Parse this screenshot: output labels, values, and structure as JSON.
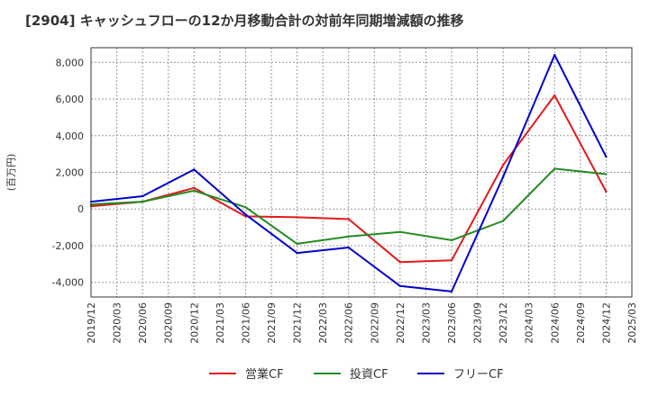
{
  "chart_data": {
    "type": "line",
    "title": "[2904]  キャッシュフローの12か月移動合計の対前年同期増減額の推移",
    "xlabel": "",
    "ylabel": "(百万円)",
    "ylim": [
      -4800,
      8800
    ],
    "yticks": [
      -4000,
      -2000,
      0,
      2000,
      4000,
      6000,
      8000
    ],
    "ytick_labels": [
      "-4,000",
      "-2,000",
      "0",
      "2,000",
      "4,000",
      "6,000",
      "8,000"
    ],
    "grid": true,
    "legend_position": "bottom",
    "categories": [
      "2019/12",
      "2020/03",
      "2020/06",
      "2020/09",
      "2020/12",
      "2021/03",
      "2021/06",
      "2021/09",
      "2021/12",
      "2022/03",
      "2022/06",
      "2022/09",
      "2022/12",
      "2023/03",
      "2023/06",
      "2023/09",
      "2023/12",
      "2024/03",
      "2024/06",
      "2024/09",
      "2024/12",
      "2025/03"
    ],
    "series": [
      {
        "name": "営業CF",
        "color": "#e31a1c",
        "points": [
          [
            "2019/12",
            150
          ],
          [
            "2020/06",
            400
          ],
          [
            "2020/12",
            1150
          ],
          [
            "2021/06",
            -400
          ],
          [
            "2021/12",
            -450
          ],
          [
            "2022/06",
            -550
          ],
          [
            "2022/12",
            -2900
          ],
          [
            "2023/06",
            -2800
          ],
          [
            "2023/12",
            2400
          ],
          [
            "2024/06",
            6200
          ],
          [
            "2024/12",
            950
          ]
        ]
      },
      {
        "name": "投資CF",
        "color": "#228b22",
        "points": [
          [
            "2019/12",
            250
          ],
          [
            "2020/06",
            400
          ],
          [
            "2020/12",
            1000
          ],
          [
            "2021/06",
            100
          ],
          [
            "2021/12",
            -1900
          ],
          [
            "2022/06",
            -1500
          ],
          [
            "2022/12",
            -1250
          ],
          [
            "2023/06",
            -1700
          ],
          [
            "2023/12",
            -650
          ],
          [
            "2024/06",
            2200
          ],
          [
            "2024/12",
            1900
          ]
        ]
      },
      {
        "name": "フリーCF",
        "color": "#0000cd",
        "points": [
          [
            "2019/12",
            400
          ],
          [
            "2020/06",
            700
          ],
          [
            "2020/12",
            2150
          ],
          [
            "2021/06",
            -300
          ],
          [
            "2021/12",
            -2400
          ],
          [
            "2022/06",
            -2100
          ],
          [
            "2022/12",
            -4200
          ],
          [
            "2023/06",
            -4500
          ],
          [
            "2023/12",
            1750
          ],
          [
            "2024/06",
            8400
          ],
          [
            "2024/12",
            2850
          ]
        ]
      }
    ]
  }
}
